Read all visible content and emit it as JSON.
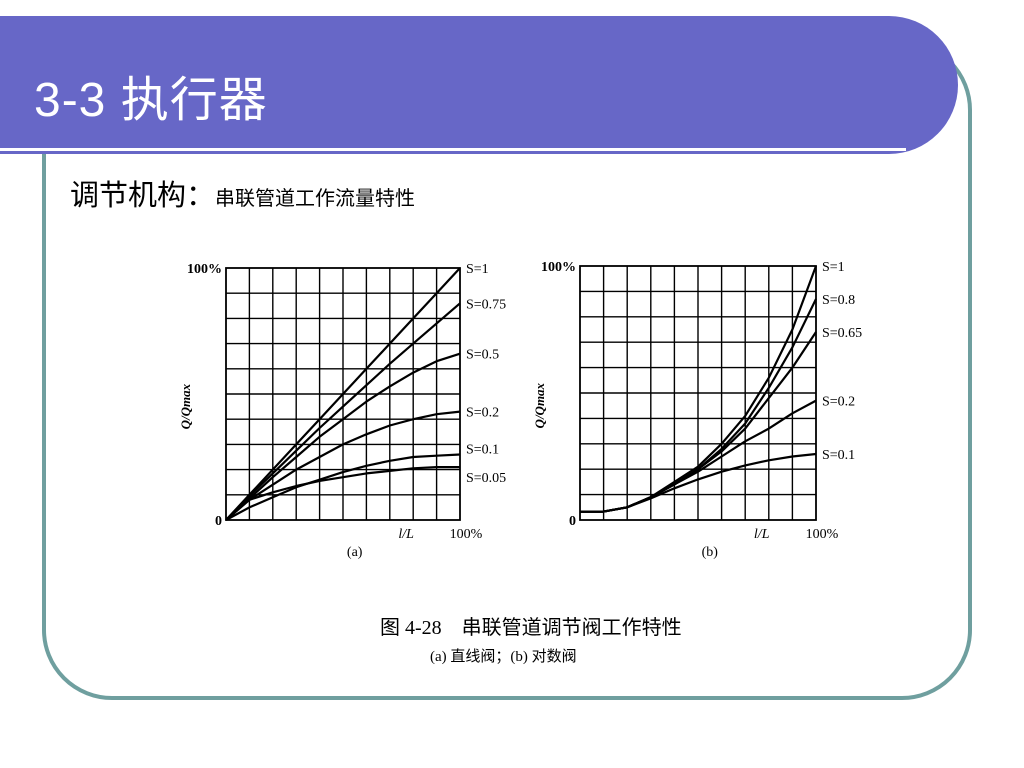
{
  "slide": {
    "title": "3-3 执行器",
    "subtitle_main": "调节机构：",
    "subtitle_detail": "串联管道工作流量特性"
  },
  "figure": {
    "caption": "图 4-28　串联管道调节阀工作特性",
    "caption_sub": "(a) 直线阀；(b) 对数阀"
  },
  "colors": {
    "banner": "#6767c7",
    "frame": "#6f9f9f",
    "ink": "#000000"
  },
  "chart_data": [
    {
      "panel_label": "(a)",
      "type": "line",
      "ylabel": "Q/Qmax",
      "xlabel": "l/L",
      "y_top_label": "100%",
      "x_end_label": "100%",
      "origin_label": "0",
      "xlim": [
        0,
        100
      ],
      "ylim": [
        0,
        100
      ],
      "grid": true,
      "x": [
        0,
        10,
        20,
        30,
        40,
        50,
        60,
        70,
        80,
        90,
        100
      ],
      "series": [
        {
          "name": "S=1",
          "values": [
            0,
            10,
            20,
            30,
            40,
            50,
            60,
            70,
            80,
            90,
            100
          ]
        },
        {
          "name": "S=0.75",
          "values": [
            0,
            9.5,
            18.5,
            27.5,
            36.5,
            45,
            53.5,
            62,
            70,
            78,
            86
          ]
        },
        {
          "name": "S=0.5",
          "values": [
            0,
            8.5,
            17,
            25,
            33,
            40,
            47,
            53,
            58.5,
            63,
            66
          ]
        },
        {
          "name": "S=0.2",
          "values": [
            0,
            8,
            14,
            20,
            25,
            30,
            34,
            37.5,
            40,
            42,
            43
          ]
        },
        {
          "name": "S=0.1",
          "values": [
            0,
            5,
            9,
            13,
            16,
            19,
            21.5,
            23.5,
            25,
            25.5,
            26
          ]
        },
        {
          "name": "S=0.05",
          "values": [
            0,
            8,
            11,
            13.5,
            15.5,
            17,
            18.5,
            19.5,
            20.5,
            21,
            21
          ]
        }
      ]
    },
    {
      "panel_label": "(b)",
      "type": "line",
      "ylabel": "Q/Qmax",
      "xlabel": "l/L",
      "y_top_label": "100%",
      "x_end_label": "100%",
      "origin_label": "0",
      "xlim": [
        0,
        100
      ],
      "ylim": [
        0,
        100
      ],
      "grid": true,
      "x": [
        0,
        10,
        20,
        30,
        40,
        50,
        60,
        70,
        80,
        90,
        100
      ],
      "series": [
        {
          "name": "S=1",
          "values": [
            3.3,
            3.3,
            5,
            9,
            15,
            21,
            30,
            41,
            56,
            75,
            100
          ]
        },
        {
          "name": "S=0.8",
          "values": [
            3.3,
            3.3,
            5,
            9,
            14,
            20,
            28,
            38,
            52,
            68,
            87
          ]
        },
        {
          "name": "S=0.65",
          "values": [
            3.3,
            3.3,
            5,
            9,
            14,
            20,
            27,
            36,
            48,
            60,
            74
          ]
        },
        {
          "name": "S=0.2",
          "values": [
            3.3,
            3.3,
            5,
            9,
            14,
            19,
            25,
            31,
            36,
            42,
            47
          ]
        },
        {
          "name": "S=0.1",
          "values": [
            3.3,
            3.3,
            5,
            8.5,
            12.5,
            16,
            19,
            21.5,
            23.5,
            25,
            26
          ]
        }
      ]
    }
  ]
}
